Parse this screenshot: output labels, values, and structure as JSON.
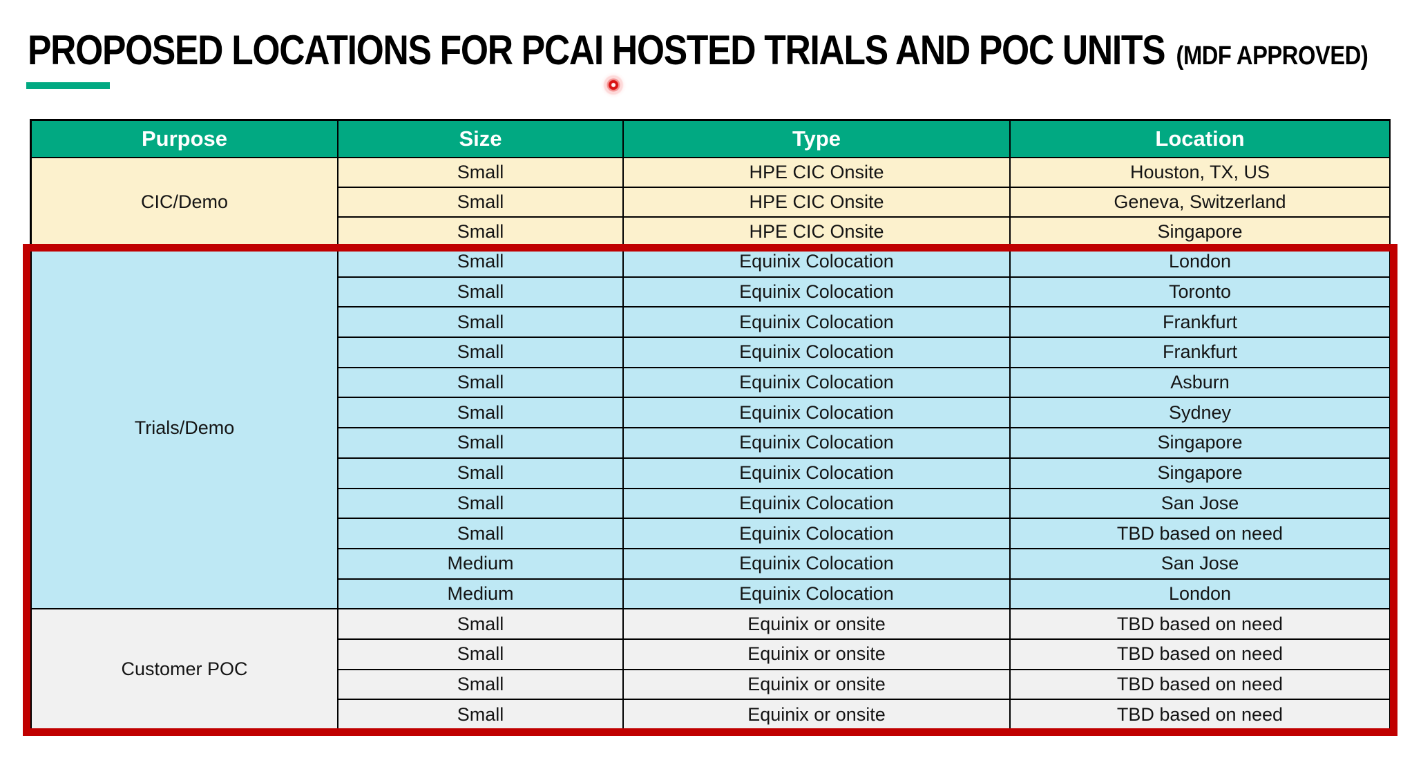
{
  "slide": {
    "title": "PROPOSED LOCATIONS FOR PCAI HOSTED TRIALS AND POC UNITS",
    "title_suffix": "(MDF APPROVED)"
  },
  "colors": {
    "hpe_green": "#01A982",
    "header_text": "#FFFFFF",
    "cream_row": "#FCF1CD",
    "blue_row": "#BEE8F4",
    "gray_row": "#F1F1F1",
    "highlight_red": "#C00000",
    "grid_line": "#000000"
  },
  "icons": {
    "laser_pointer_dot": "red-glowing-laser-dot"
  },
  "table": {
    "columns": [
      "Purpose",
      "Size",
      "Type",
      "Location"
    ],
    "groups": [
      {
        "purpose": "CIC/Demo",
        "theme": "cream",
        "highlighted": false,
        "rows": [
          {
            "size": "Small",
            "type": "HPE CIC Onsite",
            "location": "Houston, TX, US"
          },
          {
            "size": "Small",
            "type": "HPE CIC Onsite",
            "location": "Geneva, Switzerland"
          },
          {
            "size": "Small",
            "type": "HPE CIC Onsite",
            "location": "Singapore"
          }
        ]
      },
      {
        "purpose": "Trials/Demo",
        "theme": "blue",
        "highlighted": true,
        "rows": [
          {
            "size": "Small",
            "type": "Equinix Colocation",
            "location": "London"
          },
          {
            "size": "Small",
            "type": "Equinix Colocation",
            "location": "Toronto"
          },
          {
            "size": "Small",
            "type": "Equinix Colocation",
            "location": "Frankfurt"
          },
          {
            "size": "Small",
            "type": "Equinix Colocation",
            "location": "Frankfurt"
          },
          {
            "size": "Small",
            "type": "Equinix Colocation",
            "location": "Asburn"
          },
          {
            "size": "Small",
            "type": "Equinix Colocation",
            "location": "Sydney"
          },
          {
            "size": "Small",
            "type": "Equinix Colocation",
            "location": "Singapore"
          },
          {
            "size": "Small",
            "type": "Equinix Colocation",
            "location": "Singapore"
          },
          {
            "size": "Small",
            "type": "Equinix Colocation",
            "location": "San Jose"
          },
          {
            "size": "Small",
            "type": "Equinix Colocation",
            "location": "TBD based on need"
          },
          {
            "size": "Medium",
            "type": "Equinix Colocation",
            "location": "San Jose"
          },
          {
            "size": "Medium",
            "type": "Equinix Colocation",
            "location": "London"
          }
        ]
      },
      {
        "purpose": "Customer POC",
        "theme": "gray",
        "highlighted": true,
        "rows": [
          {
            "size": "Small",
            "type": "Equinix or onsite",
            "location": "TBD based on need"
          },
          {
            "size": "Small",
            "type": "Equinix or onsite",
            "location": "TBD based on need"
          },
          {
            "size": "Small",
            "type": "Equinix or onsite",
            "location": "TBD based on need"
          },
          {
            "size": "Small",
            "type": "Equinix or onsite",
            "location": "TBD based on need"
          }
        ]
      }
    ]
  }
}
